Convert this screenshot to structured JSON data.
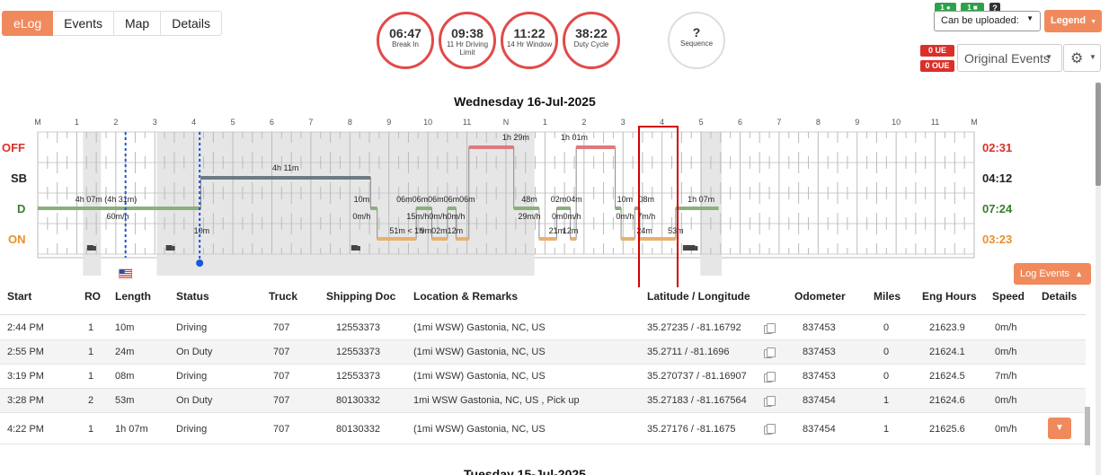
{
  "tabs": [
    {
      "label": "eLog",
      "active": true
    },
    {
      "label": "Events",
      "active": false
    },
    {
      "label": "Map",
      "active": false
    },
    {
      "label": "Details",
      "active": false
    }
  ],
  "gauges": [
    {
      "value": "06:47",
      "label": "Break In"
    },
    {
      "value": "09:38",
      "label": "11 Hr Driving Limit"
    },
    {
      "value": "11:22",
      "label": "14 Hr Window"
    },
    {
      "value": "38:22",
      "label": "Duty Cycle"
    },
    {
      "value": "?",
      "label": "Sequence"
    }
  ],
  "top_right": {
    "badges": [
      "1",
      "1",
      "?"
    ],
    "upload_select": "Can be uploaded:",
    "legend_label": "Legend",
    "ue": "0 UE",
    "oue": "0 OUE",
    "events_select": "Original Events"
  },
  "graph": {
    "date_title": "Wednesday 16-Jul-2025",
    "hour_labels": [
      "M",
      "1",
      "2",
      "3",
      "4",
      "5",
      "6",
      "7",
      "8",
      "9",
      "10",
      "11",
      "N",
      "1",
      "2",
      "3",
      "4",
      "5",
      "6",
      "7",
      "8",
      "9",
      "10",
      "11",
      "M"
    ],
    "row_labels": [
      "OFF",
      "SB",
      "D",
      "ON"
    ],
    "totals": [
      "02:31",
      "04:12",
      "07:24",
      "03:23"
    ],
    "duration_labels": [
      {
        "text": "1h 29m"
      },
      {
        "text": "1h 01m"
      },
      {
        "text": "4h 11m"
      },
      {
        "text": "4h 07m (4h 31m)"
      },
      {
        "text": "60m/h"
      },
      {
        "text": "10m"
      },
      {
        "text": "0m/h"
      },
      {
        "text": "06m06m06m06m06m"
      },
      {
        "text": "15m/h0m/h0m/h"
      },
      {
        "text": "48m"
      },
      {
        "text": "29m/h"
      },
      {
        "text": "02m04m"
      },
      {
        "text": "0m0m/h"
      },
      {
        "text": "10m"
      },
      {
        "text": "0m/h"
      },
      {
        "text": "08m"
      },
      {
        "text": "7m/h"
      },
      {
        "text": "1h 07m"
      },
      {
        "text": "10m"
      },
      {
        "text": "51m < 1h"
      },
      {
        "text": "9m02m12m"
      },
      {
        "text": "21m"
      },
      {
        "text": "12m"
      },
      {
        "text": "24m"
      },
      {
        "text": "53m"
      }
    ]
  },
  "log_events_label": "Log Events",
  "table": {
    "headers": [
      "Start",
      "RO",
      "Length",
      "Status",
      "Truck",
      "Shipping Doc",
      "Location & Remarks",
      "Latitude / Longitude",
      "Odometer",
      "Miles",
      "Eng Hours",
      "Speed",
      "Details"
    ],
    "rows": [
      [
        "2:44 PM",
        "1",
        "10m",
        "Driving",
        "707",
        "12553373",
        "(1mi WSW) Gastonia, NC, US",
        "35.27235 / -81.16792",
        "837453",
        "0",
        "21623.9",
        "0m/h"
      ],
      [
        "2:55 PM",
        "1",
        "24m",
        "On Duty",
        "707",
        "12553373",
        "(1mi WSW) Gastonia, NC, US",
        "35.2711 / -81.1696",
        "837453",
        "0",
        "21624.1",
        "0m/h"
      ],
      [
        "3:19 PM",
        "1",
        "08m",
        "Driving",
        "707",
        "12553373",
        "(1mi WSW) Gastonia, NC, US",
        "35.270737 / -81.16907",
        "837453",
        "0",
        "21624.5",
        "7m/h"
      ],
      [
        "3:28 PM",
        "2",
        "53m",
        "On Duty",
        "707",
        "80130332",
        "1mi WSW Gastonia, NC, US , Pick up",
        "35.27183 / -81.167564",
        "837454",
        "1",
        "21624.6",
        "0m/h"
      ],
      [
        "4:22 PM",
        "1",
        "1h 07m",
        "Driving",
        "707",
        "80130332",
        "(1mi WSW) Gastonia, NC, US",
        "35.27176 / -81.1675",
        "837454",
        "1",
        "21625.6",
        "0m/h"
      ]
    ]
  },
  "next_day_title": "Tuesday 15-Jul-2025",
  "colors": {
    "accent": "#f08a5d",
    "off": "#d9302a",
    "sb": "#222222",
    "d": "#3a7d2c",
    "on": "#e8912d"
  }
}
